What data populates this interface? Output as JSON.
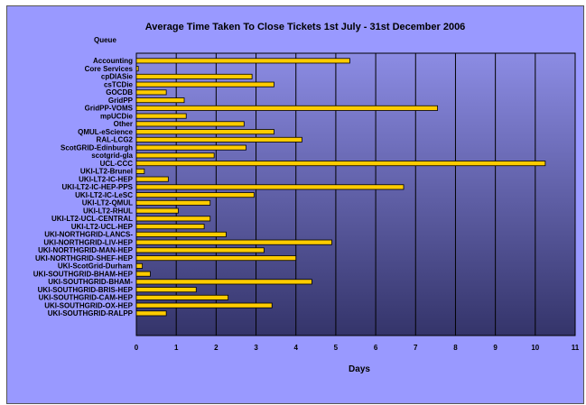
{
  "chart_data": {
    "type": "bar",
    "orientation": "horizontal",
    "title": "Average Time Taken To Close Tickets  1st July - 31st December 2006",
    "ylabel": "Queue",
    "xlabel": "Days",
    "xlim": [
      0,
      11
    ],
    "xticks": [
      "0",
      "1",
      "2",
      "3",
      "4",
      "5",
      "6",
      "7",
      "8",
      "9",
      "10",
      "11"
    ],
    "grid": "vertical",
    "legend": "none",
    "colors": {
      "bar": "#ffcc00",
      "plot_top": "#8a8ae0",
      "plot_bottom": "#36366a",
      "frame": "#9999ff"
    },
    "categories": [
      "Accounting",
      "Core Services",
      "cpDIASie",
      "csTCDie",
      "GOCDB",
      "GridPP",
      "GridPP-VOMS",
      "mpUCDie",
      "Other",
      "QMUL-eScience",
      "RAL-LCG2",
      "ScotGRID-Edinburgh",
      "scotgrid-gla",
      "UCL-CCC",
      "UKI-LT2-Brunel",
      "UKI-LT2-IC-HEP",
      "UKI-LT2-IC-HEP-PPS",
      "UKI-LT2-IC-LeSC",
      "UKI-LT2-QMUL",
      "UKI-LT2-RHUL",
      "UKI-LT2-UCL-CENTRAL",
      "UKI-LT2-UCL-HEP",
      "UKI-NORTHGRID-LANCS-",
      "UKI-NORTHGRID-LIV-HEP",
      "UKI-NORTHGRID-MAN-HEP",
      "UKI-NORTHGRID-SHEF-HEP",
      "UKI-ScotGrid-Durham",
      "UKI-SOUTHGRID-BHAM-HEP",
      "UKI-SOUTHGRID-BHAM-",
      "UKI-SOUTHGRID-BRIS-HEP",
      "UKI-SOUTHGRID-CAM-HEP",
      "UKI-SOUTHGRID-OX-HEP",
      "UKI-SOUTHGRID-RALPP"
    ],
    "values": [
      5.35,
      0.05,
      2.9,
      3.45,
      0.75,
      1.2,
      7.55,
      1.25,
      2.7,
      3.45,
      4.15,
      2.75,
      1.95,
      10.25,
      0.2,
      0.8,
      6.7,
      2.95,
      1.85,
      1.05,
      1.85,
      1.7,
      2.25,
      4.9,
      3.2,
      4.0,
      0.15,
      0.35,
      4.4,
      1.5,
      2.3,
      3.4,
      0.75
    ]
  }
}
